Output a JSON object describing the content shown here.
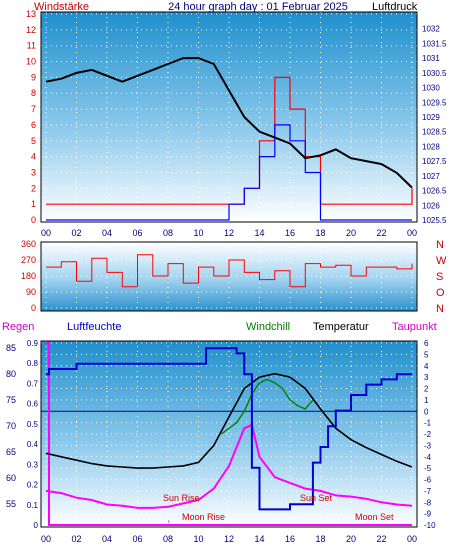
{
  "header": {
    "wind_label": "Windstärke",
    "title": "24 hour graph day : 01 Februar 2025",
    "pressure_label": "Luftdruck"
  },
  "bottom_labels": {
    "rain": "Regen",
    "humidity": "Luftfeuchte",
    "windchill": "Windchill",
    "temperature": "Temperatur",
    "dewpoint": "Taupunkt",
    "sun_rise": "Sun Rise",
    "sun_set": "Sun Set",
    "moon_rise": "Moon Rise",
    "moon_set": "Moon Set"
  },
  "x_ticks": [
    "00",
    "02",
    "04",
    "06",
    "08",
    "10",
    "12",
    "14",
    "16",
    "18",
    "20",
    "22",
    "00"
  ],
  "colors": {
    "wind": "#ff0000",
    "gust": "#0000ff",
    "pressure": "#000000",
    "humidity": "#0000cc",
    "temperature": "#000000",
    "windchill": "#008000",
    "dewpoint": "#ff00ff",
    "rain": "#ff00ff",
    "axis_left": "#cc0000",
    "axis_right": "#000080"
  },
  "chart_data": [
    {
      "type": "line",
      "name": "wind-pressure",
      "ylim_left": [
        0,
        13
      ],
      "ylim_right": [
        1025.5,
        1032.5
      ],
      "y_ticks_left": [
        "0",
        "1",
        "2",
        "3",
        "4",
        "5",
        "6",
        "7",
        "8",
        "9",
        "10",
        "11",
        "12",
        "13"
      ],
      "y_ticks_right": [
        "1025.5",
        "1026",
        "1026.5",
        "1027",
        "1027.5",
        "1028",
        "1028.5",
        "1029",
        "1029.5",
        "1030",
        "1030.5",
        "1031",
        "1031.5",
        "1032"
      ],
      "series": [
        {
          "name": "Luftdruck",
          "axis": "right",
          "x": [
            0,
            1,
            2,
            3,
            4,
            5,
            6,
            7,
            8,
            9,
            10,
            11,
            12,
            13,
            14,
            15,
            16,
            17,
            18,
            19,
            20,
            21,
            22,
            23,
            24
          ],
          "values": [
            1030.2,
            1030.3,
            1030.5,
            1030.6,
            1030.4,
            1030.2,
            1030.4,
            1030.6,
            1030.8,
            1031.0,
            1031.0,
            1030.8,
            1029.9,
            1029.0,
            1028.5,
            1028.3,
            1028.1,
            1027.6,
            1027.7,
            1027.9,
            1027.6,
            1027.5,
            1027.4,
            1027.1,
            1026.6
          ]
        },
        {
          "name": "Windstärke",
          "axis": "left",
          "x": [
            0,
            1,
            2,
            3,
            4,
            5,
            6,
            7,
            8,
            9,
            10,
            11,
            12,
            13,
            14,
            15,
            16,
            17,
            18,
            19,
            20,
            21,
            22,
            23,
            24
          ],
          "values": [
            1,
            1,
            1,
            1,
            1,
            1,
            1,
            1,
            1,
            1,
            1,
            1,
            1,
            2,
            5,
            9,
            7,
            4,
            1,
            1,
            1,
            1,
            1,
            1,
            2
          ]
        },
        {
          "name": "Böen",
          "axis": "left",
          "x": [
            0,
            1,
            2,
            3,
            4,
            5,
            6,
            7,
            8,
            9,
            10,
            11,
            12,
            13,
            14,
            15,
            16,
            17,
            18,
            19,
            20,
            21,
            22,
            23,
            24
          ],
          "values": [
            0,
            0,
            0,
            0,
            0,
            0,
            0,
            0,
            0,
            0,
            0,
            0,
            1,
            2,
            4,
            6,
            5,
            3,
            0,
            0,
            0,
            0,
            0,
            0,
            0
          ]
        }
      ]
    },
    {
      "type": "line",
      "name": "wind-direction",
      "ylim": [
        0,
        360
      ],
      "y_ticks": [
        "0",
        "90",
        "180",
        "270",
        "360"
      ],
      "direction_labels": [
        "N",
        "W",
        "S",
        "O",
        "N"
      ],
      "series": [
        {
          "name": "Windrichtung",
          "x": [
            0,
            1,
            2,
            3,
            4,
            5,
            6,
            7,
            8,
            9,
            10,
            11,
            12,
            13,
            14,
            15,
            16,
            17,
            18,
            19,
            20,
            21,
            22,
            23,
            24
          ],
          "values": [
            230,
            260,
            150,
            280,
            200,
            120,
            300,
            180,
            250,
            140,
            230,
            180,
            270,
            200,
            160,
            210,
            120,
            250,
            230,
            240,
            180,
            230,
            230,
            220,
            250
          ]
        }
      ]
    },
    {
      "type": "line",
      "name": "climate",
      "ylim_humidity": [
        51,
        86
      ],
      "ylim_rain": [
        0,
        0.9
      ],
      "ylim_temp": [
        -10,
        6
      ],
      "y_ticks_humidity": [
        "55",
        "60",
        "65",
        "70",
        "75",
        "80",
        "85"
      ],
      "y_ticks_rain": [
        "0",
        "0.1",
        "0.2",
        "0.3",
        "0.4",
        "0.5",
        "0.6",
        "0.7",
        "0.8",
        "0.9"
      ],
      "y_ticks_temp": [
        "-10",
        "-9",
        "-8",
        "-7",
        "-6",
        "-5",
        "-4",
        "-3",
        "-2",
        "-1",
        "0",
        "1",
        "2",
        "3",
        "4",
        "5",
        "6"
      ],
      "series": [
        {
          "name": "Luftfeuchte",
          "x": [
            0,
            0.2,
            2,
            4,
            6,
            8,
            10,
            10.5,
            11.5,
            12.5,
            13,
            13.5,
            14,
            15,
            16,
            17,
            17.5,
            18,
            18.5,
            19,
            20,
            21,
            22,
            23,
            24
          ],
          "values": [
            80,
            81,
            82,
            82,
            82,
            82,
            82,
            85,
            85,
            84,
            80,
            62,
            54,
            54,
            55,
            55,
            63,
            66,
            70,
            73,
            76,
            78,
            79,
            80,
            80
          ]
        },
        {
          "name": "Temperatur",
          "x": [
            0,
            1,
            2,
            3,
            4,
            5,
            6,
            7,
            8,
            9,
            10,
            11,
            12,
            13,
            14,
            15,
            16,
            17,
            18,
            19,
            20,
            21,
            22,
            23,
            24
          ],
          "values": [
            -3.7,
            -4,
            -4.3,
            -4.6,
            -4.8,
            -4.9,
            -5,
            -5,
            -4.9,
            -4.8,
            -4.5,
            -3,
            -0.5,
            2,
            3,
            3.3,
            3,
            2,
            0.2,
            -1.5,
            -2.5,
            -3.2,
            -3.8,
            -4.4,
            -4.9
          ]
        },
        {
          "name": "Windchill",
          "x": [
            11.5,
            12,
            12.5,
            13,
            13.5,
            14,
            14.5,
            15,
            15.5,
            16,
            16.5,
            17,
            17.5
          ],
          "values": [
            -2,
            -1.5,
            -1,
            0,
            1.5,
            2.5,
            2.8,
            2.5,
            2,
            1,
            0.5,
            0.2,
            1
          ]
        },
        {
          "name": "Taupunkt",
          "x": [
            0,
            1,
            2,
            3,
            4,
            5,
            6,
            7,
            8,
            9,
            10,
            11,
            12,
            13,
            13.5,
            14,
            15,
            16,
            17,
            18,
            19,
            20,
            21,
            22,
            23,
            24
          ],
          "values": [
            -7,
            -7.2,
            -7.6,
            -7.8,
            -8.2,
            -8.3,
            -8.5,
            -8.5,
            -8.4,
            -8.1,
            -7.8,
            -6.8,
            -4.8,
            -1.5,
            -1.2,
            -4,
            -5.8,
            -6.3,
            -6.8,
            -7,
            -7.4,
            -7.5,
            -7.7,
            -8,
            -8.2,
            -8.3
          ]
        },
        {
          "name": "Regen",
          "x": [
            0,
            0.2,
            0.2,
            24
          ],
          "values": [
            0.9,
            0.9,
            0,
            0
          ]
        }
      ]
    }
  ]
}
